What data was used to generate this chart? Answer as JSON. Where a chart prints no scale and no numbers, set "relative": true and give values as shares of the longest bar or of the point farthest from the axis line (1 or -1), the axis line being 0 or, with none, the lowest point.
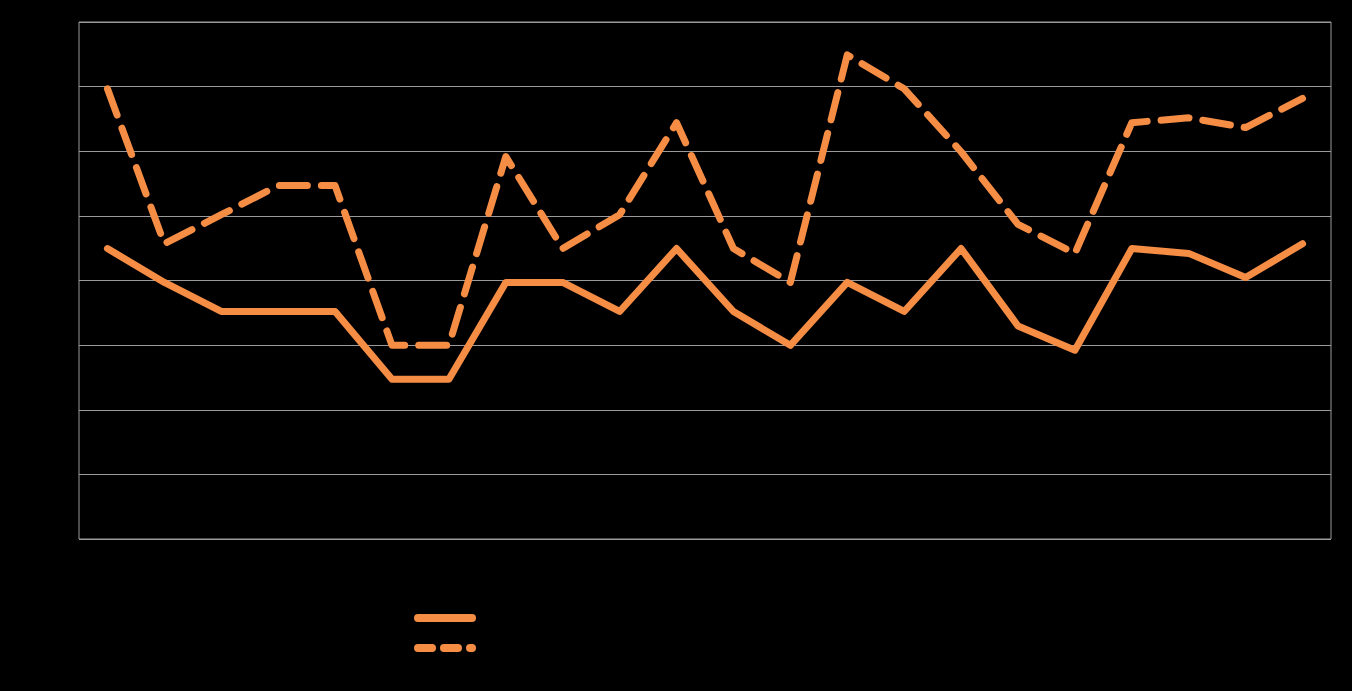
{
  "chart_data": {
    "type": "line",
    "relative": true,
    "grid": "y",
    "marker": "none",
    "categories": [
      null,
      null,
      null,
      null,
      null,
      null,
      null,
      null,
      null,
      null,
      null,
      null,
      null,
      null,
      null,
      null,
      null,
      null,
      null,
      null,
      null,
      null
    ],
    "series": [
      {
        "color": "#f58d45",
        "line_style": "solid",
        "values": [
          0.6,
          0.53,
          0.47,
          0.47,
          0.47,
          0.33,
          0.33,
          0.53,
          0.53,
          0.47,
          0.6,
          0.47,
          0.4,
          0.53,
          0.47,
          0.6,
          0.44,
          0.39,
          0.6,
          0.59,
          0.54,
          0.61
        ]
      },
      {
        "color": "#f58d45",
        "line_style": "dashed",
        "values": [
          0.93,
          0.61,
          0.67,
          0.73,
          0.73,
          0.4,
          0.4,
          0.79,
          0.6,
          0.67,
          0.86,
          0.6,
          0.53,
          1,
          0.93,
          0.8,
          0.65,
          0.59,
          0.86,
          0.87,
          0.85,
          0.91
        ]
      }
    ]
  }
}
